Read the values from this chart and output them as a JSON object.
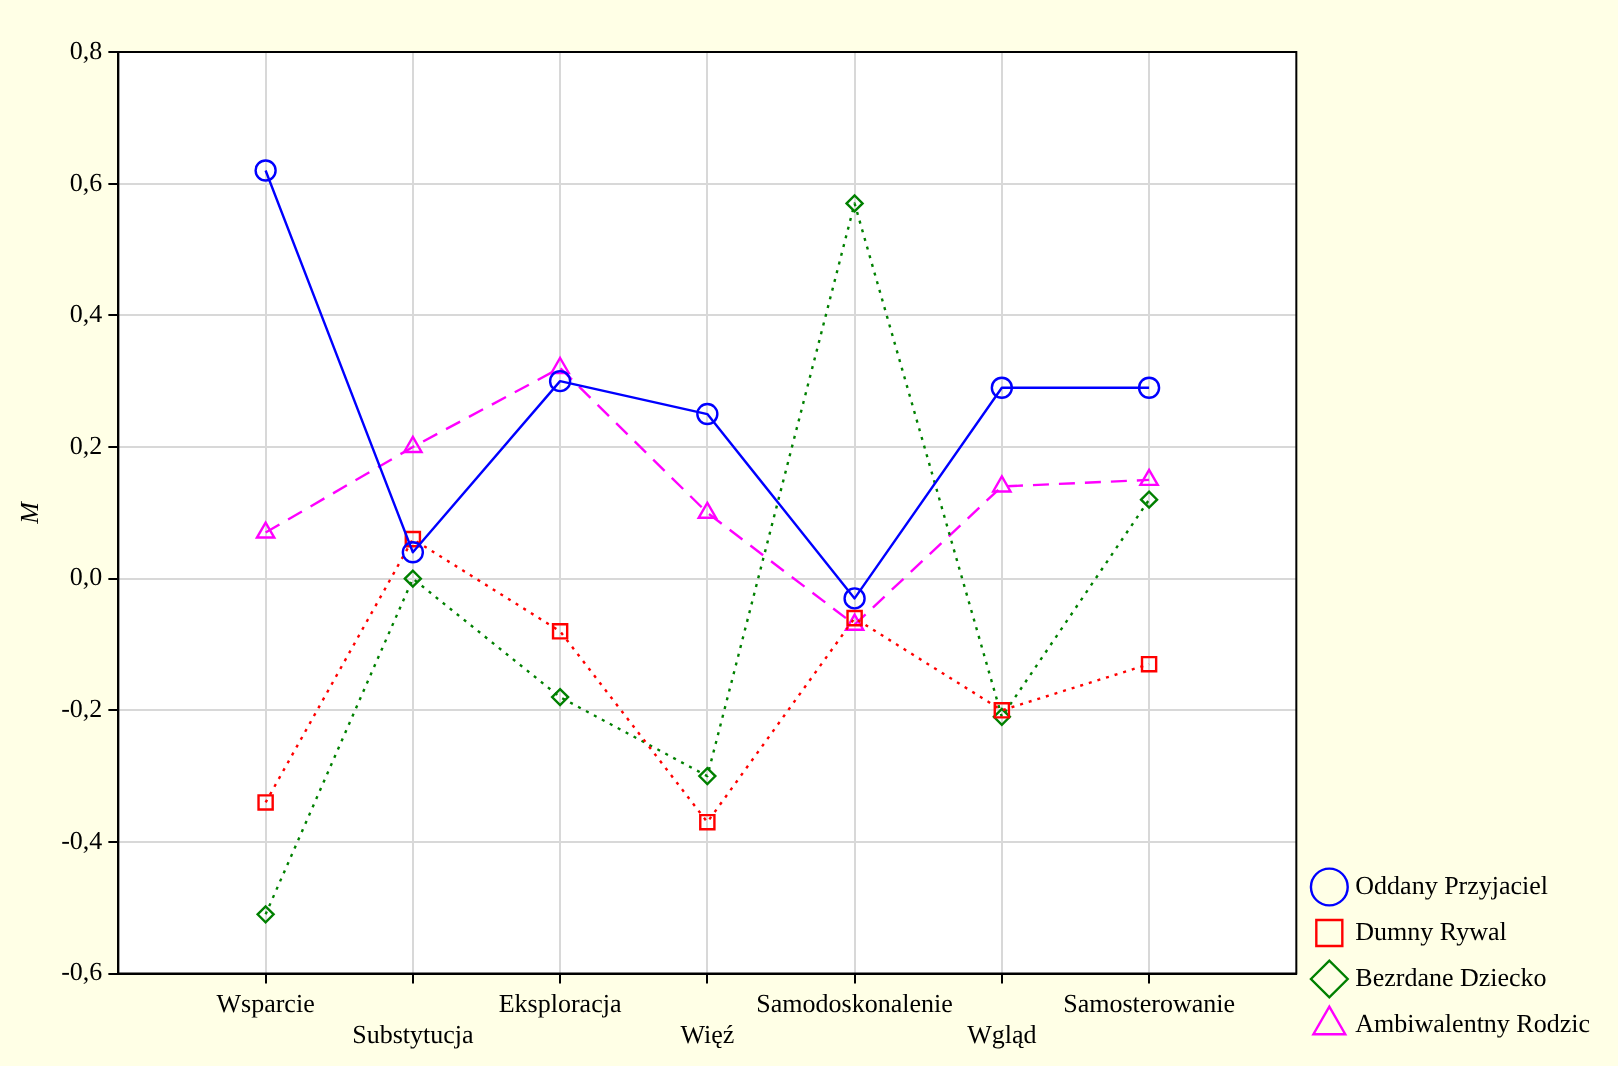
{
  "chart_data": {
    "type": "line",
    "ylabel": "M",
    "categories": [
      "Wsparcie",
      "Substytucja",
      "Eksploracja",
      "Więź",
      "Samodoskonalenie",
      "Wgląd",
      "Samosterowanie"
    ],
    "series": [
      {
        "name": "Oddany Przyjaciel",
        "color": "#0000ff",
        "marker": "circle",
        "line_style": "solid",
        "values": [
          0.62,
          0.04,
          0.3,
          0.25,
          -0.03,
          0.29,
          0.29
        ]
      },
      {
        "name": "Dumny Rywal",
        "color": "#ff0000",
        "marker": "square",
        "line_style": "dotted",
        "values": [
          -0.34,
          0.06,
          -0.08,
          -0.37,
          -0.06,
          -0.2,
          -0.13
        ]
      },
      {
        "name": "Bezrdane Dziecko",
        "color": "#008000",
        "marker": "diamond",
        "line_style": "dotted",
        "values": [
          -0.51,
          0.0,
          -0.18,
          -0.3,
          0.57,
          -0.21,
          0.12
        ]
      },
      {
        "name": "Ambiwalentny Rodzic",
        "color": "#ff00ff",
        "marker": "triangle",
        "line_style": "dashed",
        "values": [
          0.07,
          0.2,
          0.32,
          0.1,
          -0.07,
          0.14,
          0.15
        ]
      }
    ],
    "ylim": [
      -0.6,
      0.8
    ],
    "yticks": [
      {
        "value": -0.6,
        "label": "-0,6"
      },
      {
        "value": -0.4,
        "label": "-0,4"
      },
      {
        "value": -0.2,
        "label": "-0,2"
      },
      {
        "value": 0,
        "label": "0,0"
      },
      {
        "value": 0.2,
        "label": "0,2"
      },
      {
        "value": 0.4,
        "label": "0,4"
      },
      {
        "value": 0.6,
        "label": "0,6"
      },
      {
        "value": 0.8,
        "label": "0,8"
      }
    ],
    "grid": true,
    "legend": "bottom right"
  }
}
